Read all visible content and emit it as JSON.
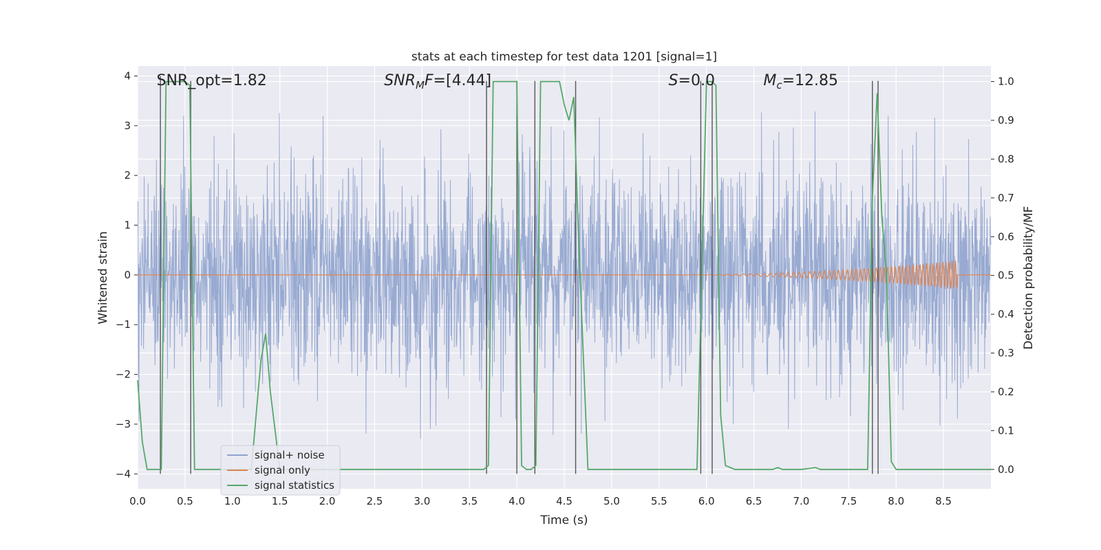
{
  "chart_data": {
    "type": "line",
    "title": "stats at each timestep for test data 1201 [signal=1]",
    "xlabel": "Time (s)",
    "ylabel_left": "Whitened strain",
    "ylabel_right": "Detection probability/MF",
    "xlim": [
      0,
      9
    ],
    "ylim_left": [
      -4.3,
      4.2
    ],
    "ylim_right": [
      -0.05,
      1.04
    ],
    "x_ticks": [
      "0.0",
      "0.5",
      "1.0",
      "1.5",
      "2.0",
      "2.5",
      "3.0",
      "3.5",
      "4.0",
      "4.5",
      "5.0",
      "5.5",
      "6.0",
      "6.5",
      "7.0",
      "7.5",
      "8.0",
      "8.5"
    ],
    "y_ticks_left": [
      "−4",
      "−3",
      "−2",
      "−1",
      "0",
      "1",
      "2",
      "3",
      "4"
    ],
    "y_ticks_right": [
      "0.0",
      "0.1",
      "0.2",
      "0.3",
      "0.4",
      "0.5",
      "0.6",
      "0.7",
      "0.8",
      "0.9",
      "1.0"
    ],
    "grid": true,
    "legend_position": "lower-left",
    "annotations": [
      {
        "label": "SNR_opt=1.82",
        "x": 0.2
      },
      {
        "label": "SNR_M F=[4.44]",
        "x": 2.6,
        "base": "SNR",
        "sub": "M",
        "tail": "F=[4.44]"
      },
      {
        "label": "S=0.0",
        "x": 5.6,
        "base": "S",
        "tail": "=0.0"
      },
      {
        "label": "M_c=12.85",
        "x": 6.6,
        "base": "M",
        "sub": "c",
        "tail": "=12.85"
      }
    ],
    "series": [
      {
        "name": "signal+ noise",
        "color": "#8fa3cd",
        "axis": "left",
        "noise_envelope": {
          "typical": 1.5,
          "peaks": 3.3
        }
      },
      {
        "name": "signal only",
        "color": "#dd8452",
        "axis": "left",
        "chirp": {
          "start_x": 5.5,
          "end_x": 8.65,
          "max_amplitude": 0.3
        }
      },
      {
        "name": "signal statistics",
        "color": "#55a868",
        "axis": "right",
        "x": [
          0.0,
          0.05,
          0.1,
          0.25,
          0.3,
          0.5,
          0.55,
          0.6,
          0.7,
          1.0,
          1.1,
          1.2,
          1.3,
          1.35,
          1.4,
          1.5,
          2.0,
          3.0,
          3.65,
          3.7,
          3.75,
          4.0,
          4.05,
          4.1,
          4.15,
          4.2,
          4.25,
          4.3,
          4.4,
          4.45,
          4.5,
          4.55,
          4.6,
          4.65,
          4.75,
          5.0,
          5.9,
          5.95,
          6.0,
          6.05,
          6.1,
          6.15,
          6.2,
          6.3,
          6.5,
          6.7,
          6.75,
          6.8,
          7.0,
          7.1,
          7.15,
          7.2,
          7.5,
          7.7,
          7.75,
          7.8,
          7.85,
          7.9,
          7.95,
          8.0,
          8.5,
          9.0
        ],
        "y": [
          0.23,
          0.07,
          0.0,
          0.0,
          1.0,
          1.0,
          0.99,
          0.0,
          0.0,
          0.0,
          0.0,
          0.0,
          0.28,
          0.35,
          0.2,
          0.0,
          0.0,
          0.0,
          0.0,
          0.01,
          1.0,
          1.0,
          0.01,
          0.0,
          0.0,
          0.01,
          1.0,
          1.0,
          1.0,
          1.0,
          0.94,
          0.9,
          0.96,
          0.6,
          0.0,
          0.0,
          0.0,
          0.5,
          1.0,
          1.0,
          0.99,
          0.14,
          0.01,
          0.0,
          0.0,
          0.0,
          0.005,
          0.0,
          0.0,
          0.003,
          0.005,
          0.0,
          0.0,
          0.0,
          0.7,
          0.97,
          0.65,
          0.5,
          0.02,
          0.0,
          0.0,
          0.0
        ]
      }
    ],
    "vertical_markers": [
      {
        "x": 0.24,
        "ymin": -4.0,
        "ymax": 4.0
      },
      {
        "x": 0.56,
        "ymin": -4.0,
        "ymax": 3.9
      },
      {
        "x": 3.68,
        "ymin": -4.0,
        "ymax": 3.9
      },
      {
        "x": 4.0,
        "ymin": -4.0,
        "ymax": 3.9
      },
      {
        "x": 4.19,
        "ymin": -4.0,
        "ymax": 3.9
      },
      {
        "x": 4.62,
        "ymin": -4.0,
        "ymax": 3.9
      },
      {
        "x": 5.94,
        "ymin": -4.0,
        "ymax": 3.9
      },
      {
        "x": 6.06,
        "ymin": -4.0,
        "ymax": 3.9
      },
      {
        "x": 7.75,
        "ymin": -4.0,
        "ymax": 3.9
      },
      {
        "x": 7.81,
        "ymin": -4.0,
        "ymax": 3.9
      }
    ]
  }
}
